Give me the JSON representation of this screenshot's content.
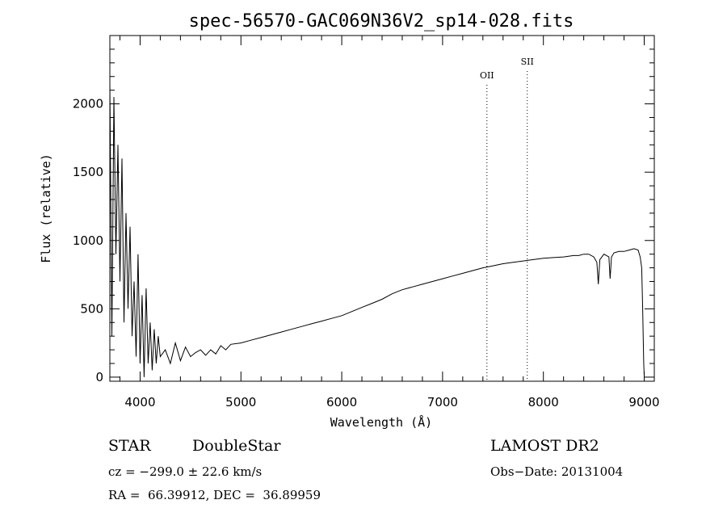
{
  "chart_data": {
    "type": "line",
    "title": "spec-56570-GAC069N36V2_sp14-028.fits",
    "xlabel": "Wavelength (Å)",
    "ylabel": "Flux (relative)",
    "xlim": [
      3700,
      9100
    ],
    "ylim": [
      -30,
      2500
    ],
    "xticks": [
      4000,
      5000,
      6000,
      7000,
      8000,
      9000
    ],
    "yticks": [
      0,
      500,
      1000,
      1500,
      2000
    ],
    "lines": [
      {
        "label": "OII",
        "wavelength": 7440
      },
      {
        "label": "SII",
        "wavelength": 7840
      }
    ],
    "series": [
      {
        "x": [
          3700,
          3720,
          3740,
          3760,
          3780,
          3800,
          3820,
          3840,
          3860,
          3880,
          3900,
          3920,
          3940,
          3960,
          3980,
          4000,
          4020,
          4040,
          4060,
          4080,
          4100,
          4120,
          4140,
          4160,
          4180,
          4200,
          4250,
          4300,
          4350,
          4400,
          4450,
          4500,
          4550,
          4600,
          4650,
          4700,
          4750,
          4800,
          4850,
          4900,
          5000,
          5100,
          5200,
          5300,
          5400,
          5500,
          5600,
          5700,
          5800,
          5900,
          6000,
          6100,
          6200,
          6300,
          6400,
          6500,
          6600,
          6700,
          6800,
          6900,
          7000,
          7100,
          7200,
          7300,
          7400,
          7500,
          7600,
          7700,
          7800,
          7900,
          8000,
          8100,
          8200,
          8300,
          8350,
          8400,
          8450,
          8500,
          8530,
          8545,
          8560,
          8600,
          8650,
          8662,
          8675,
          8700,
          8750,
          8800,
          8850,
          8900,
          8940,
          8960,
          8975,
          8985,
          8995,
          9000
        ],
        "values": [
          2150,
          300,
          2050,
          900,
          1700,
          700,
          1600,
          400,
          1200,
          500,
          1100,
          300,
          700,
          150,
          900,
          100,
          600,
          0,
          650,
          100,
          400,
          50,
          350,
          100,
          300,
          150,
          200,
          100,
          250,
          120,
          220,
          150,
          180,
          200,
          160,
          200,
          170,
          230,
          200,
          240,
          250,
          270,
          290,
          310,
          330,
          350,
          370,
          390,
          410,
          430,
          450,
          480,
          510,
          540,
          570,
          610,
          640,
          660,
          680,
          700,
          720,
          740,
          760,
          780,
          800,
          815,
          830,
          840,
          850,
          860,
          870,
          875,
          880,
          890,
          890,
          900,
          900,
          880,
          840,
          680,
          860,
          900,
          880,
          720,
          880,
          910,
          920,
          920,
          930,
          940,
          930,
          880,
          800,
          500,
          100,
          10
        ]
      }
    ],
    "grid": false,
    "legend": "none"
  },
  "info": {
    "class_label": "STAR",
    "subclass": "DoubleStar",
    "cz": "cz = −299.0 ± 22.6 km/s",
    "coords": "RA =  66.39912, DEC =  36.89959",
    "survey": "LAMOST DR2",
    "obs_date": "Obs−Date: 20131004"
  }
}
